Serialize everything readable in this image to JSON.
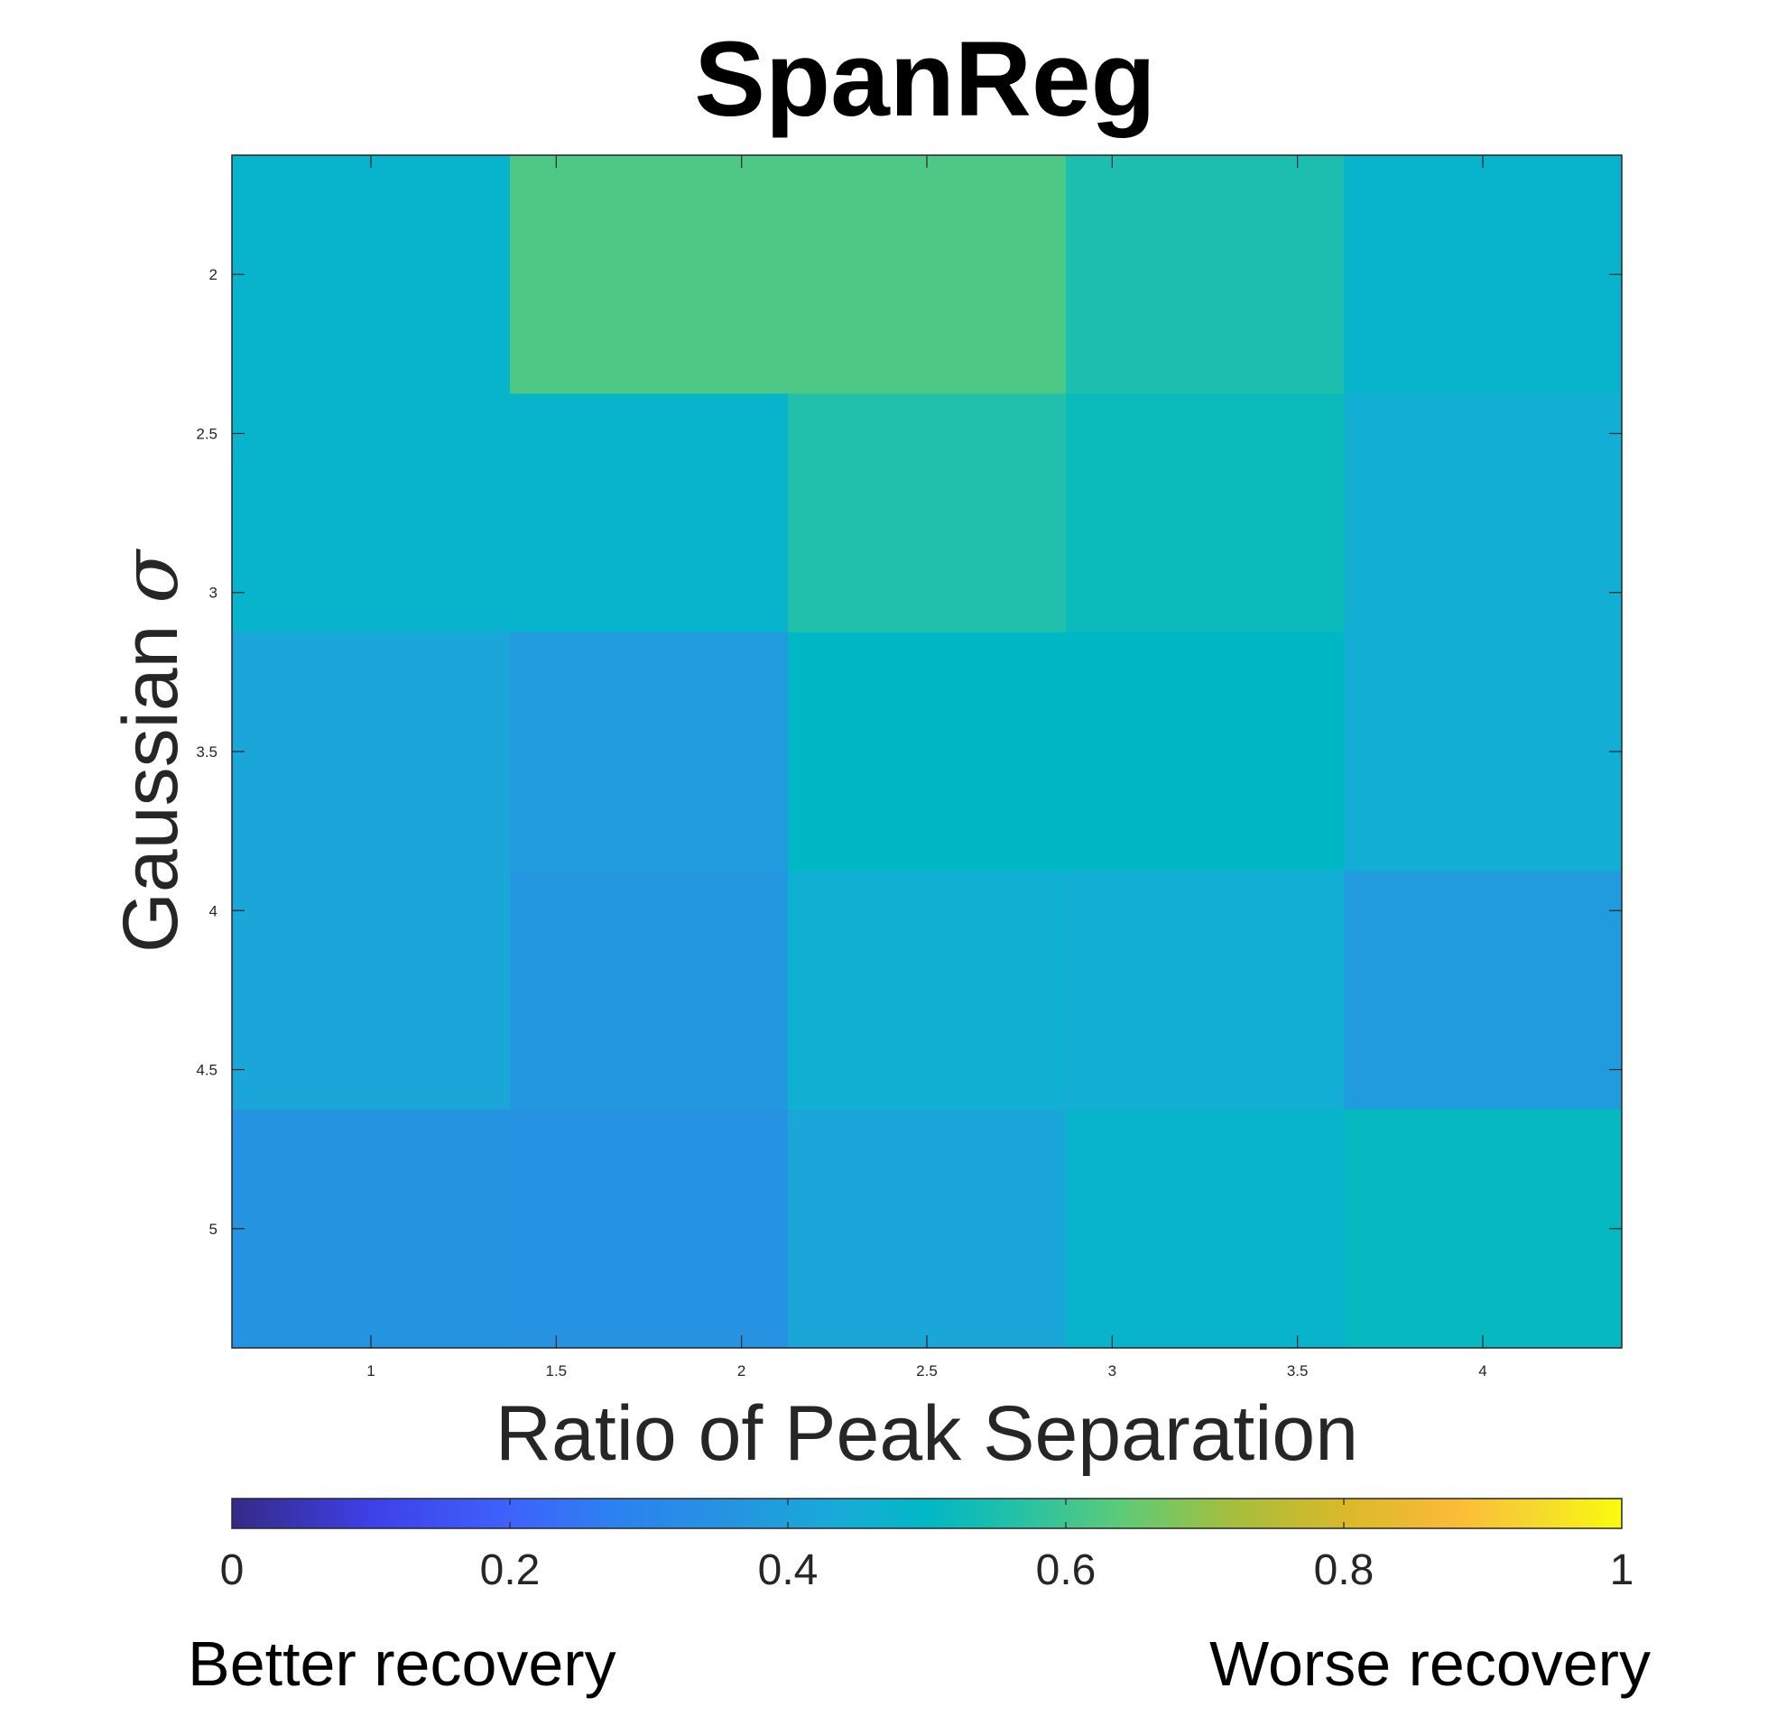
{
  "chart_data": {
    "type": "heatmap",
    "title": "SpanReg",
    "xlabel": "Ratio of Peak Separation",
    "ylabel_text": "Gaussian ",
    "ylabel_symbol": "σ",
    "x_values": [
      1,
      1.75,
      2.5,
      3.25,
      4
    ],
    "y_values": [
      2,
      2.75,
      3.5,
      4.25,
      5
    ],
    "xlim": [
      0.625,
      4.375
    ],
    "ylim": [
      1.625,
      5.375
    ],
    "y_reversed": true,
    "x_ticks": [
      1,
      1.5,
      2,
      2.5,
      3,
      3.5,
      4
    ],
    "x_tick_labels": [
      "1",
      "1.5",
      "2",
      "2.5",
      "3",
      "3.5",
      "4"
    ],
    "y_ticks": [
      2,
      2.5,
      3,
      3.5,
      4,
      4.5,
      5
    ],
    "y_tick_labels": [
      "2",
      "2.5",
      "3",
      "3.5",
      "4",
      "4.5",
      "5"
    ],
    "values": [
      [
        0.48,
        0.62,
        0.62,
        0.55,
        0.48
      ],
      [
        0.48,
        0.48,
        0.56,
        0.52,
        0.45
      ],
      [
        0.42,
        0.38,
        0.5,
        0.5,
        0.45
      ],
      [
        0.42,
        0.37,
        0.46,
        0.45,
        0.38
      ],
      [
        0.36,
        0.35,
        0.42,
        0.48,
        0.51
      ]
    ],
    "colorbar": {
      "orientation": "horizontal",
      "placement": "bottom",
      "range": [
        0,
        1
      ],
      "ticks": [
        0,
        0.2,
        0.4,
        0.6,
        0.8,
        1
      ],
      "tick_labels": [
        "0",
        "0.2",
        "0.4",
        "0.6",
        "0.8",
        "1"
      ],
      "left_annotation": "Better recovery",
      "right_annotation": "Worse recovery",
      "colormap": "parula"
    },
    "grid": false
  },
  "colors": {
    "frame": "#262626",
    "parula": [
      [
        0.0,
        "#352a87"
      ],
      [
        0.1,
        "#3d40e8"
      ],
      [
        0.2,
        "#3e62fb"
      ],
      [
        0.28,
        "#2b83ef"
      ],
      [
        0.36,
        "#2594e0"
      ],
      [
        0.44,
        "#17acd7"
      ],
      [
        0.5,
        "#00b8c5"
      ],
      [
        0.56,
        "#21c0aa"
      ],
      [
        0.64,
        "#5dcb78"
      ],
      [
        0.72,
        "#a5be3c"
      ],
      [
        0.8,
        "#d9b92a"
      ],
      [
        0.88,
        "#fbbb38"
      ],
      [
        0.94,
        "#f6d92d"
      ],
      [
        1.0,
        "#f9fb0e"
      ]
    ]
  }
}
